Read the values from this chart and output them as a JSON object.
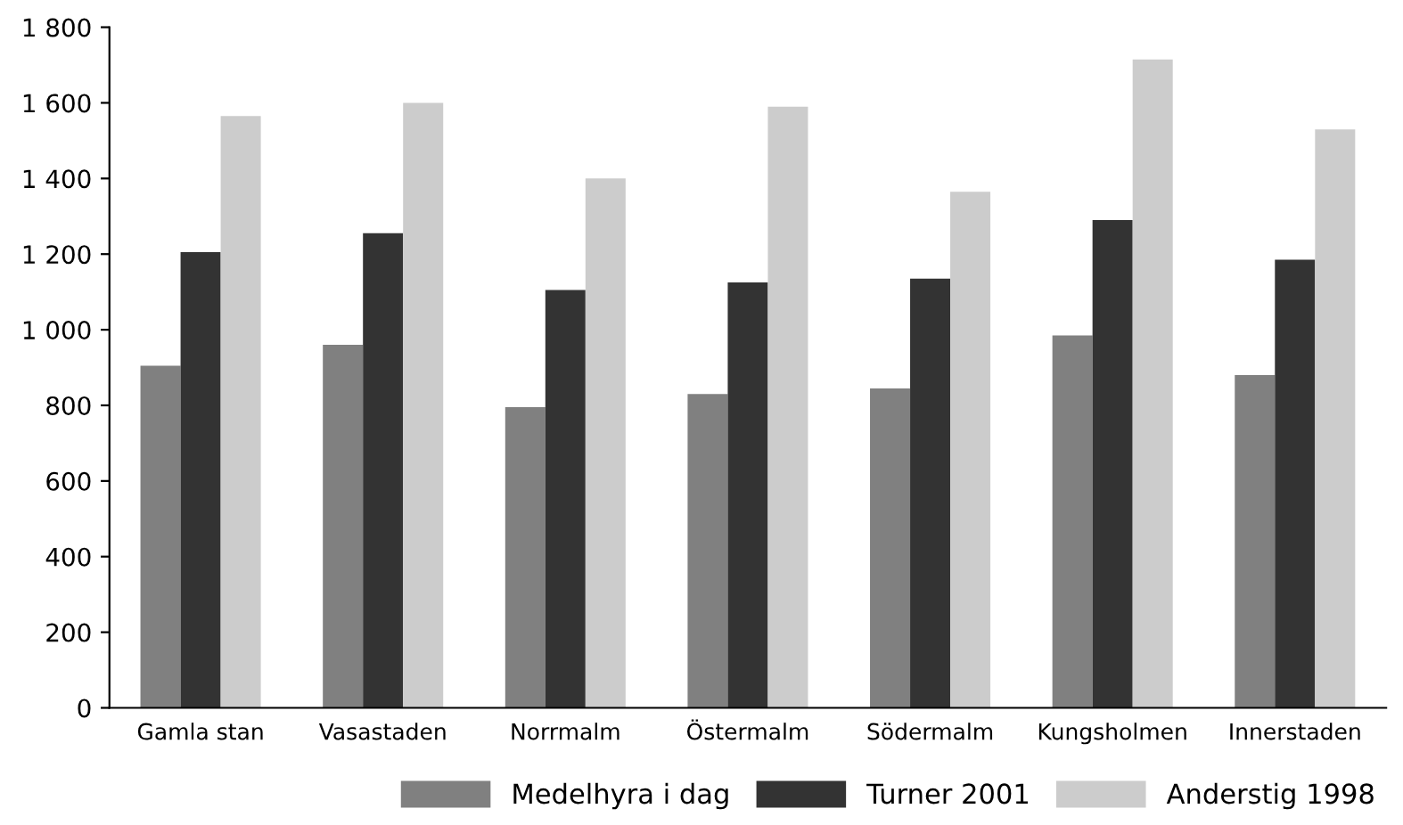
{
  "chart_data": {
    "type": "bar",
    "categories": [
      "Gamla stan",
      "Vasastaden",
      "Norrmalm",
      "Östermalm",
      "Södermalm",
      "Kungsholmen",
      "Innerstaden"
    ],
    "series": [
      {
        "name": "Medelhyra i dag",
        "color": "#808080",
        "values": [
          905,
          960,
          795,
          830,
          845,
          985,
          880
        ]
      },
      {
        "name": "Turner 2001",
        "color": "#333333",
        "values": [
          1205,
          1255,
          1105,
          1125,
          1135,
          1290,
          1185
        ]
      },
      {
        "name": "Anderstig 1998",
        "color": "#cccccc",
        "values": [
          1565,
          1600,
          1400,
          1590,
          1365,
          1715,
          1530
        ]
      }
    ],
    "ylim": [
      0,
      1800
    ],
    "yticks": [
      0,
      200,
      400,
      600,
      800,
      {
        "value": 1000,
        "label": "1 000"
      },
      {
        "value": 1200,
        "label": "1 200"
      },
      {
        "value": 1400,
        "label": "1 400"
      },
      {
        "value": 1600,
        "label": "1 600"
      },
      {
        "value": 1800,
        "label": "1 800"
      }
    ],
    "grid": false,
    "legend": "bottom right"
  }
}
